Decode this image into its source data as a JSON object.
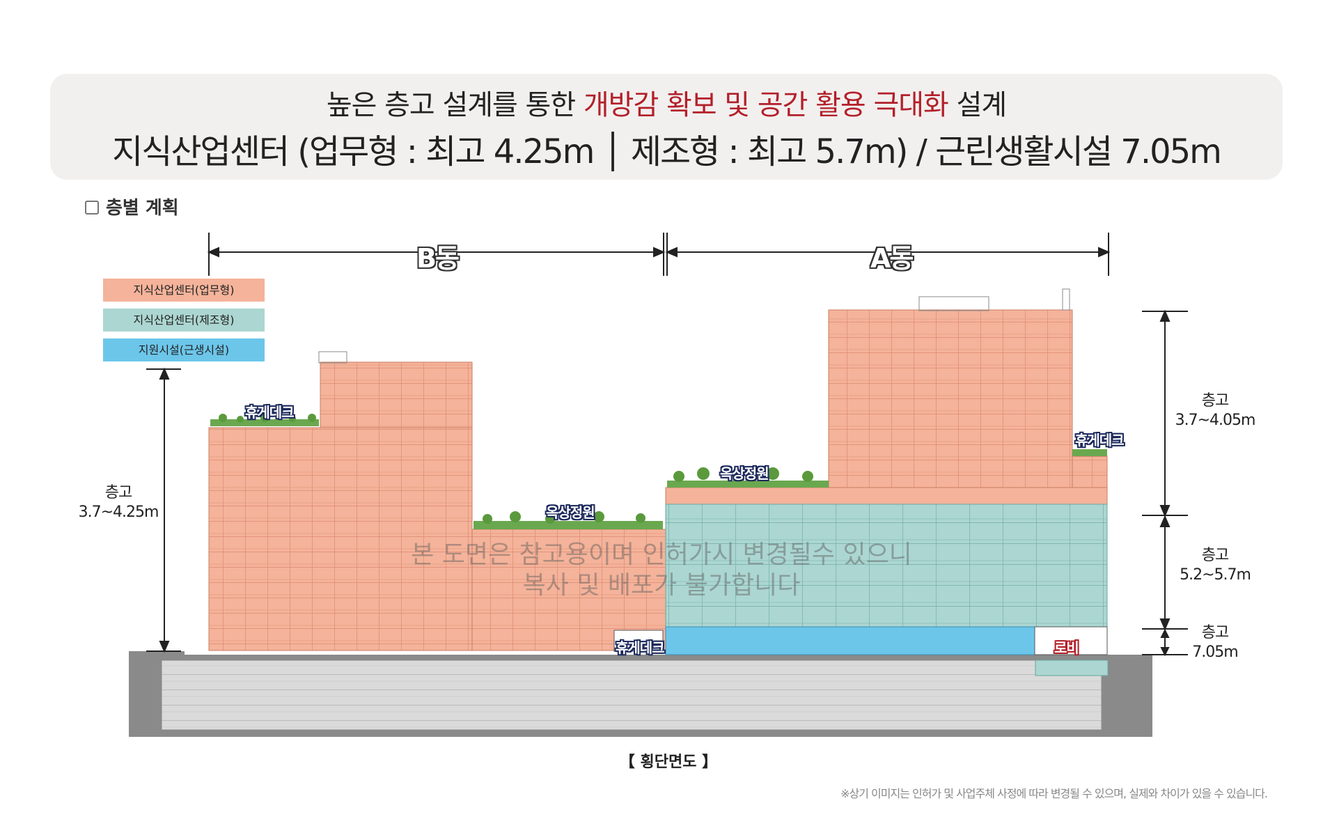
{
  "headline": {
    "line1_pre": "높은 층고 설계를 통한 ",
    "line1_highlight": "개방감 확보 및 공간 활용 극대화",
    "line1_post": " 설계",
    "line2": "지식산업센터 (업무형 : 최고 4.25m │ 제조형 : 최고 5.7m)  /  근린생활시설 7.05m"
  },
  "section_title": "층별 계획",
  "legend": [
    {
      "label": "지식산업센터(업무형)",
      "color": "#f4b39a"
    },
    {
      "label": "지식산업센터(제조형)",
      "color": "#acd6d1"
    },
    {
      "label": "지원시설(근생시설)",
      "color": "#6cc6ea"
    }
  ],
  "buildings": {
    "b_label": "B동",
    "a_label": "A동"
  },
  "labels": {
    "deck_b": "휴게데크",
    "garden_b": "옥상정원",
    "garden_a": "옥상정원",
    "deck_a": "휴게데크",
    "deck_low": "휴게데크",
    "lobby": "로비"
  },
  "dimensions": {
    "left_title": "층고",
    "left_value": "3.7~4.25m",
    "a_top_title": "층고",
    "a_top_value": "3.7~4.05m",
    "a_mid_title": "층고",
    "a_mid_value": "5.2~5.7m",
    "a_low_title": "층고",
    "a_low_value": "7.05m"
  },
  "watermark": {
    "line1": "본 도면은 참고용이며 인허가시 변경될수 있으니",
    "line2": "복사 및 배포가 불가합니다"
  },
  "caption": "【 횡단면도 】",
  "footnote": "※상기 이미지는 인허가 및 사업주체 사정에 따라 변경될 수 있으며, 실제와 차이가 있을 수 있습니다.",
  "colors": {
    "office": "#f4b39a",
    "factory": "#acd6d1",
    "retail": "#6cc6ea",
    "basement": "#d9d9d9",
    "highlight_red": "#b3202a"
  }
}
